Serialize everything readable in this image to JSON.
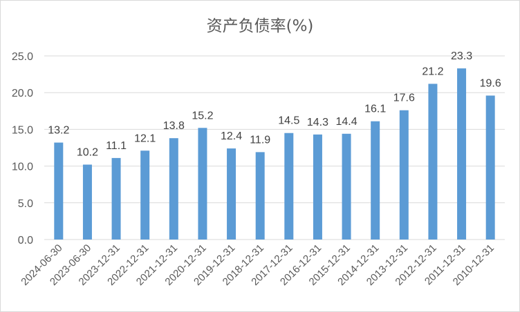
{
  "chart_data": {
    "type": "bar",
    "title": "资产负债率(%)",
    "xlabel": "",
    "ylabel": "",
    "ylim": [
      0,
      25
    ],
    "yticks": [
      "0.0",
      "5.0",
      "10.0",
      "15.0",
      "20.0",
      "25.0"
    ],
    "grid": true,
    "legend": "none",
    "categories": [
      "2024-06-30",
      "2023-06-30",
      "2023-12-31",
      "2022-12-31",
      "2021-12-31",
      "2020-12-31",
      "2019-12-31",
      "2018-12-31",
      "2017-12-31",
      "2016-12-31",
      "2015-12-31",
      "2014-12-31",
      "2013-12-31",
      "2012-12-31",
      "2011-12-31",
      "2010-12-31"
    ],
    "values": [
      13.2,
      10.2,
      11.1,
      12.1,
      13.8,
      15.2,
      12.4,
      11.9,
      14.5,
      14.3,
      14.4,
      16.1,
      17.6,
      21.2,
      23.3,
      19.6
    ],
    "labels": [
      "13.2",
      "10.2",
      "11.1",
      "12.1",
      "13.8",
      "15.2",
      "12.4",
      "11.9",
      "14.5",
      "14.3",
      "14.4",
      "16.1",
      "17.6",
      "21.2",
      "23.3",
      "19.6"
    ],
    "colors": {
      "bar": "#5b9bd5",
      "grid": "#d9d9d9",
      "text": "#595959"
    }
  }
}
